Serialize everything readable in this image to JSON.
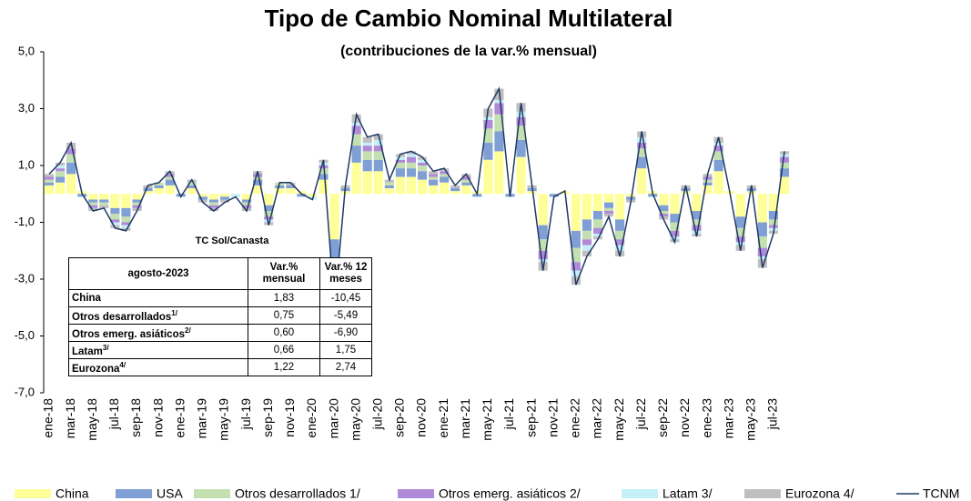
{
  "chart_data": {
    "type": "bar",
    "title": "Tipo de Cambio Nominal Multilateral",
    "subtitle": "(contribuciones  de la var.% mensual)",
    "categories": [
      "ene-18",
      null,
      "mar-18",
      null,
      "may-18",
      null,
      "jul-18",
      null,
      "sep-18",
      null,
      "nov-18",
      null,
      "ene-19",
      null,
      "mar-19",
      null,
      "may-19",
      null,
      "jul-19",
      null,
      "sep-19",
      null,
      "nov-19",
      null,
      "ene-20",
      null,
      "mar-20",
      null,
      "may-20",
      null,
      "jul-20",
      null,
      "sep-20",
      null,
      "nov-20",
      null,
      "ene-21",
      null,
      "mar-21",
      null,
      "may-21",
      null,
      "jul-21",
      null,
      "sep-21",
      null,
      "nov-21",
      null,
      "ene-22",
      null,
      "mar-22",
      null,
      "may-22",
      null,
      "jul-22",
      null,
      "sep-22",
      null,
      "nov-22",
      null,
      "ene-23",
      null,
      "mar-23",
      null,
      "may-23",
      null,
      "jul-23",
      null
    ],
    "ylim": [
      -7,
      5
    ],
    "yticks": [
      {
        "value": -7,
        "label": "-7,0"
      },
      {
        "value": -5,
        "label": "-5,0"
      },
      {
        "value": -3,
        "label": "-3,0"
      },
      {
        "value": -1,
        "label": "-1,0"
      },
      {
        "value": 1,
        "label": "1,0"
      },
      {
        "value": 3,
        "label": "3,0"
      },
      {
        "value": 5,
        "label": "5,0"
      }
    ],
    "series": [
      {
        "name": "China",
        "color": "#ffff99",
        "values": [
          0.3,
          0.4,
          0.7,
          0.1,
          -0.2,
          -0.2,
          -0.5,
          -0.5,
          -0.2,
          0.1,
          0.2,
          0.3,
          0.0,
          0.2,
          -0.1,
          -0.2,
          -0.1,
          0.0,
          -0.2,
          0.3,
          -0.4,
          0.2,
          0.2,
          0.1,
          -0.1,
          0.5,
          -1.6,
          0.1,
          1.1,
          0.8,
          0.8,
          0.2,
          0.6,
          0.6,
          0.5,
          0.3,
          0.4,
          0.1,
          0.3,
          0.1,
          1.2,
          1.5,
          0.0,
          1.3,
          0.1,
          -1.1,
          0.0,
          0.1,
          -1.3,
          -0.9,
          -0.6,
          -0.3,
          -0.9,
          -0.1,
          0.9,
          0.1,
          -0.4,
          -0.7,
          0.1,
          -0.6,
          0.3,
          0.8,
          0.1,
          -0.8,
          0.1,
          -1.0,
          -0.6,
          0.6
        ]
      },
      {
        "name": "USA",
        "color": "#7f9fd5",
        "values": [
          0.1,
          0.2,
          0.4,
          -0.1,
          -0.1,
          -0.1,
          -0.2,
          -0.3,
          -0.1,
          0.1,
          0.1,
          0.2,
          -0.1,
          0.1,
          -0.1,
          -0.1,
          -0.1,
          0.0,
          -0.1,
          0.2,
          -0.2,
          0.1,
          0.1,
          -0.1,
          0.0,
          0.2,
          -0.8,
          0.1,
          0.6,
          0.4,
          0.4,
          0.1,
          0.3,
          0.3,
          0.3,
          0.2,
          0.2,
          0.1,
          0.1,
          -0.1,
          0.6,
          0.7,
          -0.1,
          0.6,
          0.1,
          -0.5,
          -0.1,
          0.0,
          -0.6,
          -0.4,
          -0.3,
          -0.2,
          -0.4,
          -0.1,
          0.4,
          -0.1,
          -0.2,
          -0.3,
          0.1,
          -0.3,
          0.1,
          0.4,
          0.0,
          -0.4,
          0.1,
          -0.5,
          -0.3,
          0.3
        ]
      },
      {
        "name": "Otros desarrollados 1/",
        "color": "#c4dfb0",
        "values": [
          0.1,
          0.2,
          0.3,
          0.0,
          -0.1,
          -0.1,
          -0.2,
          -0.2,
          -0.1,
          0.0,
          0.1,
          0.1,
          0.0,
          0.1,
          0.0,
          -0.1,
          0.0,
          0.0,
          -0.1,
          0.1,
          -0.2,
          0.1,
          0.0,
          0.0,
          0.0,
          0.2,
          -0.6,
          0.0,
          0.4,
          0.3,
          0.3,
          0.1,
          0.2,
          0.2,
          0.2,
          0.1,
          0.1,
          0.0,
          0.1,
          0.0,
          0.5,
          0.6,
          0.0,
          0.5,
          0.0,
          -0.4,
          0.0,
          0.0,
          -0.5,
          -0.3,
          -0.3,
          -0.1,
          -0.3,
          0.0,
          0.3,
          0.0,
          -0.1,
          -0.3,
          0.0,
          -0.2,
          0.1,
          0.3,
          0.0,
          -0.3,
          0.0,
          -0.4,
          -0.2,
          0.2
        ]
      },
      {
        "name": "Otros emerg. asiáticos 2/",
        "color": "#b08ad9",
        "values": [
          0.1,
          0.1,
          0.2,
          0.0,
          -0.1,
          0.0,
          -0.1,
          -0.1,
          -0.1,
          0.0,
          0.0,
          0.1,
          0.0,
          0.0,
          0.0,
          -0.1,
          0.0,
          0.0,
          -0.1,
          0.1,
          -0.1,
          0.0,
          0.0,
          0.0,
          0.0,
          0.1,
          -0.4,
          0.0,
          0.3,
          0.2,
          0.2,
          0.0,
          0.1,
          0.2,
          0.1,
          0.1,
          0.1,
          0.0,
          0.1,
          0.0,
          0.3,
          0.4,
          0.0,
          0.3,
          0.0,
          -0.3,
          0.0,
          0.0,
          -0.3,
          -0.2,
          -0.2,
          -0.1,
          -0.2,
          0.0,
          0.2,
          0.0,
          -0.1,
          -0.2,
          0.0,
          -0.2,
          0.1,
          0.2,
          0.0,
          -0.2,
          0.0,
          -0.3,
          -0.1,
          0.2
        ]
      },
      {
        "name": "Latam 3/",
        "color": "#c6f0f8",
        "values": [
          0.0,
          0.1,
          0.0,
          0.0,
          0.0,
          0.0,
          -0.1,
          -0.1,
          0.0,
          0.0,
          0.0,
          0.0,
          0.0,
          0.0,
          0.0,
          0.0,
          0.0,
          -0.1,
          0.0,
          0.0,
          -0.1,
          0.0,
          0.0,
          0.0,
          -0.1,
          0.1,
          -0.2,
          0.0,
          0.1,
          0.1,
          0.2,
          0.0,
          0.1,
          0.1,
          0.1,
          0.0,
          0.0,
          0.0,
          0.0,
          0.0,
          0.1,
          0.1,
          0.0,
          0.2,
          0.0,
          -0.1,
          0.0,
          0.0,
          -0.2,
          -0.2,
          -0.1,
          0.0,
          -0.2,
          0.0,
          0.2,
          0.0,
          0.0,
          -0.1,
          0.0,
          -0.1,
          0.0,
          0.1,
          0.0,
          -0.1,
          0.0,
          -0.1,
          -0.1,
          0.1
        ]
      },
      {
        "name": "Eurozona 4/",
        "color": "#bfbfbf",
        "values": [
          0.1,
          0.1,
          0.2,
          0.0,
          -0.1,
          -0.1,
          -0.1,
          -0.1,
          -0.1,
          0.1,
          0.0,
          0.1,
          0.0,
          0.1,
          -0.1,
          -0.1,
          -0.1,
          0.0,
          -0.1,
          0.1,
          -0.1,
          0.0,
          0.1,
          0.0,
          0.0,
          0.1,
          -0.4,
          0.1,
          0.3,
          0.2,
          0.2,
          0.1,
          0.1,
          0.1,
          0.1,
          0.1,
          0.1,
          0.1,
          0.1,
          0.0,
          0.3,
          0.4,
          0.0,
          0.3,
          0.1,
          -0.3,
          0.0,
          0.0,
          -0.3,
          -0.2,
          -0.1,
          -0.1,
          -0.2,
          -0.1,
          0.2,
          0.0,
          -0.1,
          -0.1,
          0.1,
          -0.1,
          0.1,
          0.2,
          0.0,
          -0.2,
          0.1,
          -0.3,
          -0.1,
          0.1
        ]
      }
    ],
    "line": {
      "name": "TCNM",
      "color": "#1f3864",
      "values": [
        0.7,
        1.1,
        1.8,
        0.0,
        -0.6,
        -0.5,
        -1.2,
        -1.3,
        -0.6,
        0.3,
        0.4,
        0.8,
        -0.1,
        0.5,
        -0.3,
        -0.6,
        -0.3,
        -0.1,
        -0.6,
        0.8,
        -1.1,
        0.4,
        0.4,
        0.0,
        -0.2,
        1.2,
        -4.0,
        0.3,
        2.8,
        2.0,
        2.1,
        0.5,
        1.4,
        1.5,
        1.3,
        0.8,
        0.9,
        0.3,
        0.7,
        0.0,
        3.0,
        3.7,
        -0.1,
        3.2,
        0.3,
        -2.7,
        -0.1,
        0.1,
        -3.2,
        -2.2,
        -1.6,
        -0.8,
        -2.2,
        -0.3,
        2.2,
        0.0,
        -0.9,
        -1.7,
        0.3,
        -1.5,
        0.7,
        2.0,
        0.1,
        -2.0,
        0.3,
        -2.6,
        -1.4,
        1.5
      ]
    }
  },
  "table": {
    "title": "TC Sol/Canasta",
    "header": [
      "agosto-2023",
      "Var.% mensual",
      "Var.% 12 meses"
    ],
    "rows": [
      {
        "label": "China",
        "values": [
          "1,83",
          "-10,45"
        ]
      },
      {
        "label": "Otros desarrollados",
        "note": "1/",
        "values": [
          "0,75",
          "-5,49"
        ]
      },
      {
        "label": "Otros emerg. asiáticos",
        "note": "2/",
        "values": [
          "0,60",
          "-6,90"
        ]
      },
      {
        "label": "Latam",
        "note": "3/",
        "values": [
          "0,66",
          "1,75"
        ]
      },
      {
        "label": "Eurozona",
        "note": "4/",
        "values": [
          "1,22",
          "2,74"
        ]
      }
    ]
  }
}
